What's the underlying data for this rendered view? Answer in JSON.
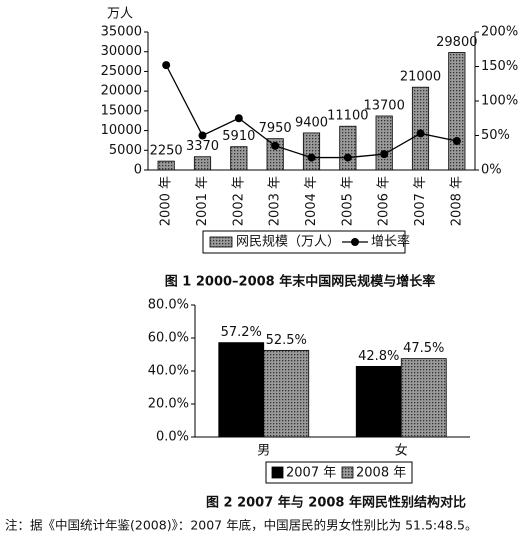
{
  "chart_data": [
    {
      "type": "bar",
      "title": "图 1 2000–2008 年末中国网民规模与增长率",
      "y_label": "万人",
      "categories": [
        "2000 年",
        "2001 年",
        "2002 年",
        "2003 年",
        "2004 年",
        "2005 年",
        "2006 年",
        "2007 年",
        "2008 年"
      ],
      "series": [
        {
          "name": "网民规模（万人）",
          "color": "#9a9a9a",
          "values": [
            2250,
            3370,
            5910,
            7950,
            9400,
            11100,
            13700,
            21000,
            29800
          ]
        },
        {
          "name": "增长率",
          "type": "line",
          "axis": "y2",
          "color": "#000000",
          "values": [
            152,
            50,
            75,
            35,
            18,
            18,
            23,
            53,
            42
          ]
        }
      ],
      "ylim": [
        0,
        35000
      ],
      "yticks": [
        0,
        5000,
        10000,
        15000,
        20000,
        25000,
        30000,
        35000
      ],
      "y2lim": [
        0,
        200
      ],
      "y2ticks": [
        {
          "value": 0,
          "label": "0%"
        },
        {
          "value": 50,
          "label": "50%"
        },
        {
          "value": 100,
          "label": "100%"
        },
        {
          "value": 150,
          "label": "150%"
        },
        {
          "value": 200,
          "label": "200%"
        }
      ],
      "legend": "bottom"
    },
    {
      "type": "bar",
      "title": "图 2 2007 年与 2008 年网民性别结构对比",
      "categories": [
        "男",
        "女"
      ],
      "series": [
        {
          "name": "2007 年",
          "color": "#000000",
          "values": [
            57.2,
            42.8
          ],
          "value_labels": [
            "57.2%",
            "42.8%"
          ]
        },
        {
          "name": "2008 年",
          "color": "#9a9a9a",
          "values": [
            52.5,
            47.5
          ],
          "value_labels": [
            "52.5%",
            "47.5%"
          ]
        }
      ],
      "ylim": [
        0,
        80
      ],
      "yticks": [
        {
          "value": 0,
          "label": "0.0%"
        },
        {
          "value": 20,
          "label": "20.0%"
        },
        {
          "value": 40,
          "label": "40.0%"
        },
        {
          "value": 60,
          "label": "60.0%"
        },
        {
          "value": 80,
          "label": "80.0%"
        }
      ],
      "legend": "bottom"
    }
  ],
  "note": "注：据《中国统计年鉴(2008)》：2007 年底，中国居民的男女性别比为 51.5:48.5。"
}
